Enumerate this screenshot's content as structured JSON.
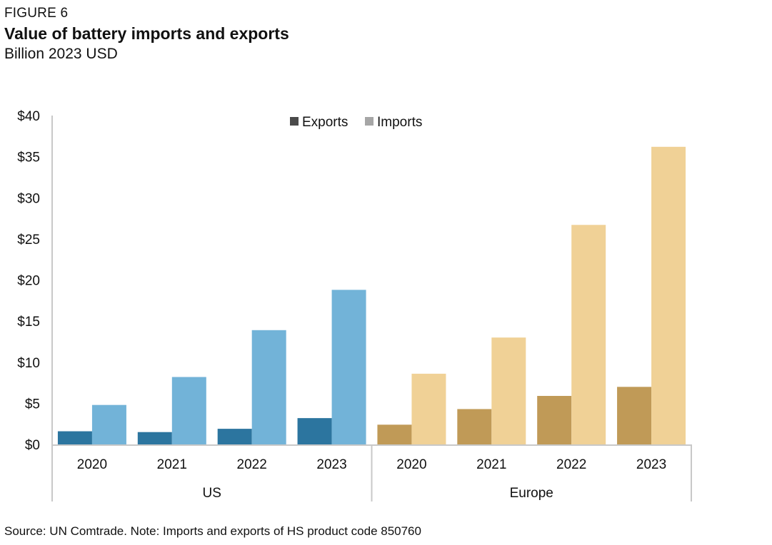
{
  "figure_label": "FIGURE 6",
  "title": "Value of battery imports and exports",
  "subtitle": "Billion 2023 USD",
  "source": "Source: UN Comtrade. Note: Imports and exports of HS product code 850760",
  "colors": {
    "us_exports": "#2c759f",
    "us_imports": "#72b3d8",
    "europe_exports": "#c09a57",
    "europe_imports": "#f0d196",
    "legend_exports": "#4a4a4a",
    "legend_imports": "#a6a6a6",
    "axis": "#c8c8c8"
  },
  "chart_data": {
    "type": "bar",
    "y_ticks": [
      "$0",
      "$5",
      "$10",
      "$15",
      "$20",
      "$25",
      "$30",
      "$35",
      "$40"
    ],
    "ylim": [
      0,
      40
    ],
    "legend": [
      "Exports",
      "Imports"
    ],
    "legend_position": "top-center",
    "grid": false,
    "groups": [
      {
        "name": "US",
        "categories": [
          "2020",
          "2021",
          "2022",
          "2023"
        ],
        "series": [
          {
            "name": "Exports",
            "values": [
              1.6,
              1.5,
              1.9,
              3.2
            ]
          },
          {
            "name": "Imports",
            "values": [
              4.8,
              8.2,
              13.9,
              18.8
            ]
          }
        ]
      },
      {
        "name": "Europe",
        "categories": [
          "2020",
          "2021",
          "2022",
          "2023"
        ],
        "series": [
          {
            "name": "Exports",
            "values": [
              2.4,
              4.3,
              5.9,
              7.0
            ]
          },
          {
            "name": "Imports",
            "values": [
              8.6,
              13.0,
              26.7,
              36.2
            ]
          }
        ]
      }
    ]
  }
}
